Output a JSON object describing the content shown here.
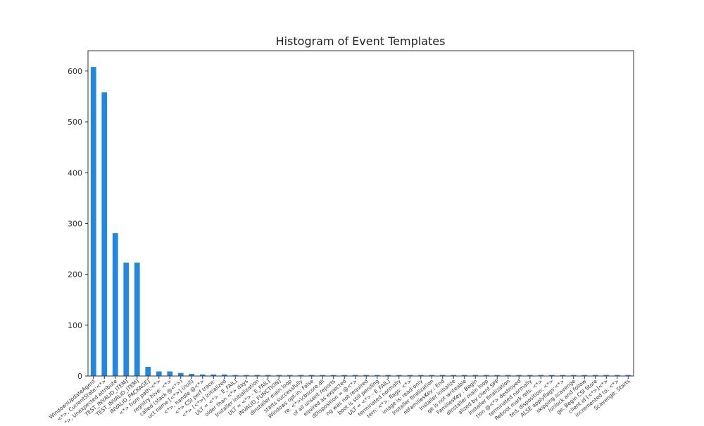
{
  "chart_data": {
    "type": "bar",
    "title": "Histogram of Event Templates",
    "xlabel": "",
    "ylabel": "",
    "ylim": [
      0,
      640
    ],
    "y_ticks": [
      0,
      100,
      200,
      300,
      400,
      500,
      600
    ],
    "grid": false,
    "legend": "none",
    "bar_color": "#1f88e5",
    "categories": [
      "WindowsUpdateAgent",
      "<*>, CurrentState:<*>",
      "<*>, Unexpected attribute",
      "TEST_INVALID_ITEM]",
      "TEST_INVALID_ITEM]",
      "INVALID_PACKAGE]",
      "<*> from path:<*>",
      "registry hive: <*>",
      "called (stack @<*>)",
      "uct name [<*>] (null)",
      "<*>, handle @<*>",
      "<*> CSI perf trace:",
      "<*> (<*>) initialized",
      "ULT = <*> - E_FAIL]",
      "older than <*> days",
      "Installer initialization",
      "ULT = <*> - E_FAIL]",
      "INVALID_FUNCTION]",
      "dInstaller main loop",
      "starts successfully",
      "Windows opt-in: False",
      "re: <*>\\cbscore.dll",
      "of all unsent reports",
      "equired as expected",
      "dDisposition = @<*>",
      "ng was not required",
      "boot is still pending",
      "ULT = <*> - E_FAIL]",
      "terminated normally",
      "tern: <*>, flags: <*>",
      "image is: read-only",
      "Installer finalization",
      "ntFamiliesKey : End",
      "Installer initialize",
      "ge is not writeable",
      "FamiliesKey : Begin",
      "dInstaller main loop",
      "alized by client SPP",
      "Installer finalization",
      "tion @<*> destroyed",
      "terminated normally",
      "Reboot mark refs: <*>",
      "ted, disposition: <*>",
      "ALSE applyflags:<*>",
      "skipping scavenge",
      "/unlock and follow",
      "ge: Begin CSI Store",
      "client id [<*>]<*>",
      "incremented to: <*>",
      "Scavenge: Starts"
    ],
    "values": [
      608,
      558,
      281,
      223,
      223,
      18,
      9,
      9,
      6,
      4,
      3,
      3,
      3,
      2,
      2,
      2,
      2,
      2,
      2,
      2,
      2,
      2,
      2,
      2,
      2,
      2,
      2,
      2,
      2,
      2,
      2,
      2,
      2,
      2,
      2,
      2,
      2,
      2,
      2,
      2,
      2,
      2,
      2,
      2,
      2,
      2,
      2,
      2,
      2,
      2
    ]
  }
}
